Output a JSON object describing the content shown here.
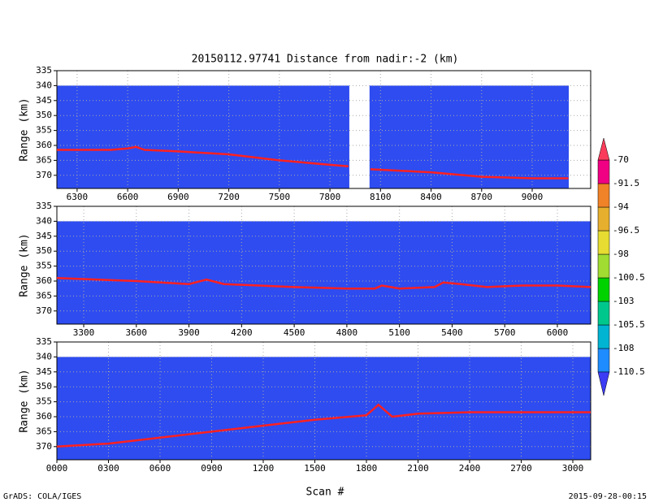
{
  "title": "20150112.97741    Distance from nadir:-2 (km)",
  "xlabel": "Scan #",
  "footer_left": "GrADS: COLA/IGES",
  "footer_right": "2015-09-28-00:15",
  "colorbar": {
    "levels": [
      -110.5,
      -108,
      -105.5,
      -103,
      -100.5,
      -98,
      -96.5,
      -94,
      -91.5,
      -70
    ],
    "colors": [
      "#3c3cf5",
      "#1e8cff",
      "#00b4d2",
      "#00c88c",
      "#00d200",
      "#a0dc32",
      "#e6dc32",
      "#e6af2d",
      "#f08228",
      "#f00082",
      "#fa3c5a"
    ]
  },
  "chart_data": [
    {
      "type": "line",
      "ylabel": "Range (km)",
      "grid": true,
      "background": "#2e4cf0",
      "coverage": [
        [
          6180,
          7915
        ],
        [
          8035,
          9217
        ]
      ],
      "coverage_top": 340,
      "xlim": [
        6180,
        9347
      ],
      "ylim": [
        335,
        374.4
      ],
      "xticks": [
        6300,
        6600,
        6900,
        7200,
        7500,
        7800,
        8100,
        8400,
        8700,
        9000
      ],
      "yticks": [
        335,
        340,
        345,
        350,
        355,
        360,
        365,
        370
      ],
      "x": [
        6180,
        6500,
        6600,
        6650,
        6700,
        6900,
        7200,
        7500,
        7800,
        7910,
        7960,
        8040,
        8400,
        8700,
        9000,
        9215
      ],
      "series": [
        {
          "color": "#ff2020",
          "values": [
            361.5,
            361.5,
            361,
            360.5,
            361.5,
            362,
            363,
            365,
            366.5,
            367,
            null,
            368,
            369,
            370.5,
            371,
            371
          ]
        }
      ]
    },
    {
      "type": "line",
      "ylabel": "Range (km)",
      "grid": true,
      "background": "#2e4cf0",
      "coverage": [
        [
          3147,
          6190
        ]
      ],
      "coverage_top": 340,
      "xlim": [
        3147,
        6190
      ],
      "ylim": [
        335,
        374.4
      ],
      "xticks": [
        3300,
        3600,
        3900,
        4200,
        4500,
        4800,
        5100,
        5400,
        5700,
        6000
      ],
      "yticks": [
        335,
        340,
        345,
        350,
        355,
        360,
        365,
        370
      ],
      "x": [
        3147,
        3600,
        3900,
        4000,
        4100,
        4300,
        4500,
        4800,
        4960,
        5000,
        5100,
        5300,
        5350,
        5450,
        5600,
        5800,
        6000,
        6190
      ],
      "series": [
        {
          "color": "#ff2020",
          "values": [
            359,
            360,
            361,
            359.5,
            361,
            361.5,
            362,
            362.5,
            362.5,
            361.5,
            362.5,
            362,
            360.5,
            361,
            362,
            361.5,
            361.5,
            362
          ]
        }
      ]
    },
    {
      "type": "line",
      "ylabel": "Range (km)",
      "grid": true,
      "background": "#2e4cf0",
      "coverage": [
        [
          0,
          3104
        ]
      ],
      "coverage_top": 340,
      "xlim": [
        0,
        3104
      ],
      "ylim": [
        335,
        374.4
      ],
      "xticks": [
        {
          "value": 0,
          "label": "0000"
        },
        {
          "value": 300,
          "label": "0300"
        },
        {
          "value": 600,
          "label": "0600"
        },
        {
          "value": 900,
          "label": "0900"
        },
        1200,
        1500,
        1800,
        2100,
        2400,
        2700,
        3000
      ],
      "yticks": [
        335,
        340,
        345,
        350,
        355,
        360,
        365,
        370
      ],
      "x": [
        0,
        300,
        600,
        900,
        1200,
        1500,
        1800,
        1870,
        1950,
        2100,
        2400,
        2700,
        3000,
        3104
      ],
      "series": [
        {
          "color": "#ff2020",
          "values": [
            370,
            369,
            367,
            365,
            363,
            361,
            359.5,
            356,
            360,
            359,
            358.5,
            358.5,
            358.5,
            358.5
          ]
        }
      ]
    }
  ]
}
